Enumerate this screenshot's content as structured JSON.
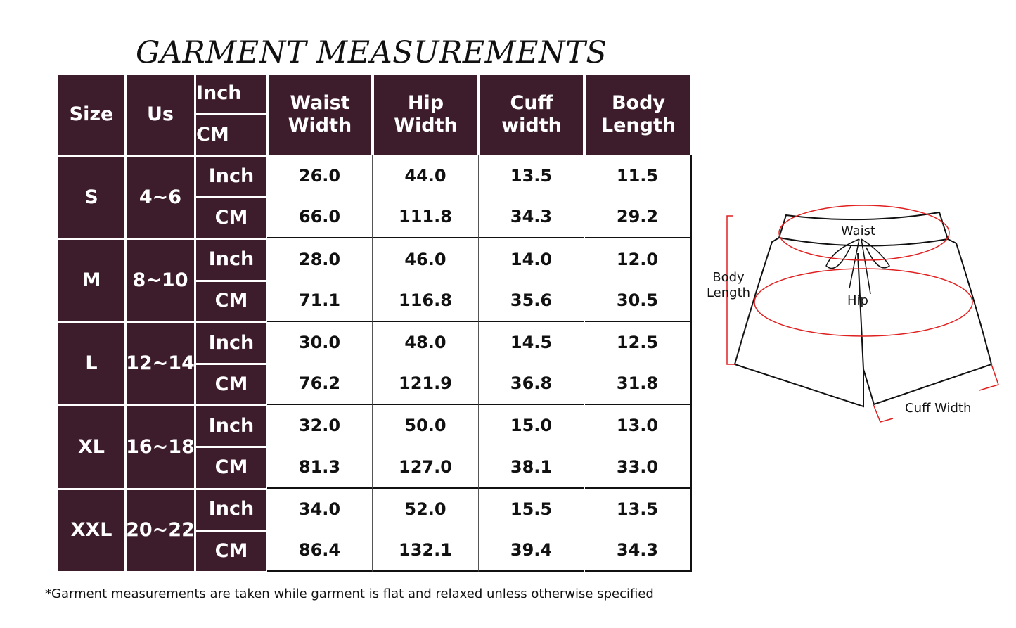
{
  "title": "GARMENT MEASUREMENTS",
  "table": {
    "headers": {
      "size": "Size",
      "us": "Us",
      "unit_inch": "Inch",
      "unit_cm": "CM",
      "waist": "Waist Width",
      "hip": "Hip Width",
      "cuff": "Cuff width",
      "body": "Body Length"
    },
    "header_color": "#3d1c2b",
    "rows": [
      {
        "size": "S",
        "us": "4~6",
        "inch": {
          "unit": "Inch",
          "values": [
            "26.0",
            "44.0",
            "13.5",
            "11.5"
          ]
        },
        "cm": {
          "unit": "CM",
          "values": [
            "66.0",
            "111.8",
            "34.3",
            "29.2"
          ]
        }
      },
      {
        "size": "M",
        "us": "8~10",
        "inch": {
          "unit": "Inch",
          "values": [
            "28.0",
            "46.0",
            "14.0",
            "12.0"
          ]
        },
        "cm": {
          "unit": "CM",
          "values": [
            "71.1",
            "116.8",
            "35.6",
            "30.5"
          ]
        }
      },
      {
        "size": "L",
        "us": "12~14",
        "inch": {
          "unit": "Inch",
          "values": [
            "30.0",
            "48.0",
            "14.5",
            "12.5"
          ]
        },
        "cm": {
          "unit": "CM",
          "values": [
            "76.2",
            "121.9",
            "36.8",
            "31.8"
          ]
        }
      },
      {
        "size": "XL",
        "us": "16~18",
        "inch": {
          "unit": "Inch",
          "values": [
            "32.0",
            "50.0",
            "15.0",
            "13.0"
          ]
        },
        "cm": {
          "unit": "CM",
          "values": [
            "81.3",
            "127.0",
            "38.1",
            "33.0"
          ]
        }
      },
      {
        "size": "XXL",
        "us": "20~22",
        "inch": {
          "unit": "Inch",
          "values": [
            "34.0",
            "52.0",
            "15.5",
            "13.5"
          ]
        },
        "cm": {
          "unit": "CM",
          "values": [
            "86.4",
            "132.1",
            "39.4",
            "34.3"
          ]
        }
      }
    ]
  },
  "diagram": {
    "labels": {
      "waist": "Waist",
      "hip": "Hip",
      "body_length": "Body Length",
      "cuff_width": "Cuff Width"
    },
    "measure_color": "#e02020"
  },
  "footnote": "*Garment measurements are taken while garment is flat and relaxed unless otherwise specified"
}
